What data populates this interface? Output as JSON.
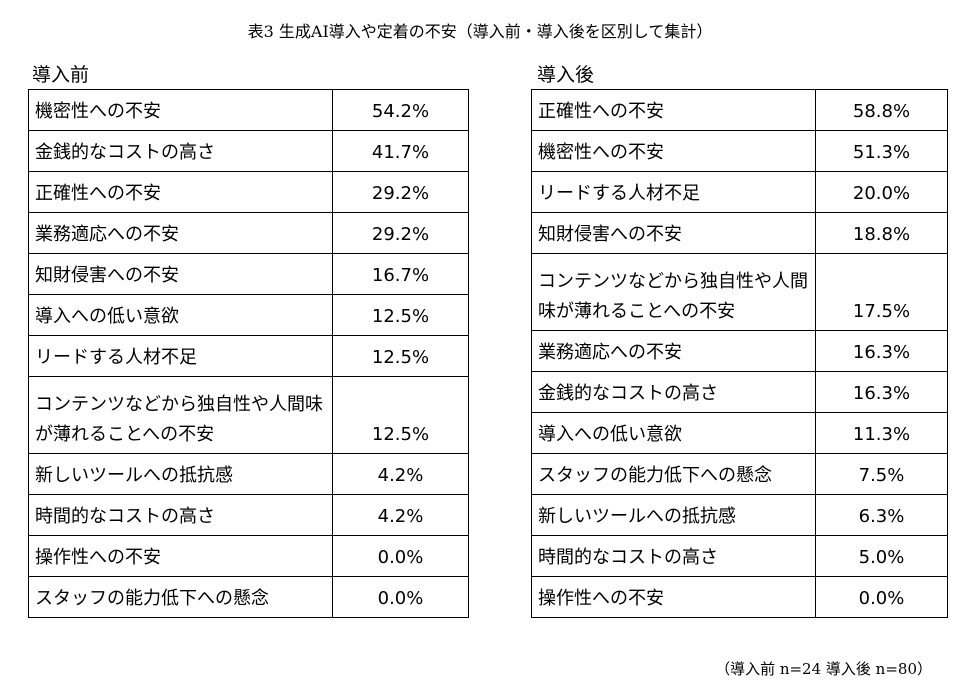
{
  "title": "表3 生成AI導入や定着の不安（導入前・導入後を区別して集計）",
  "before": {
    "label": "導入前",
    "rows": [
      {
        "item": "機密性への不安",
        "pct": "54.2%"
      },
      {
        "item": "金銭的なコストの高さ",
        "pct": "41.7%"
      },
      {
        "item": "正確性への不安",
        "pct": "29.2%"
      },
      {
        "item": "業務適応への不安",
        "pct": "29.2%"
      },
      {
        "item": "知財侵害への不安",
        "pct": "16.7%"
      },
      {
        "item": "導入への低い意欲",
        "pct": "12.5%"
      },
      {
        "item": "リードする人材不足",
        "pct": "12.5%"
      },
      {
        "item": "コンテンツなどから独自性や人間味が薄れることへの不安",
        "pct": "12.5%"
      },
      {
        "item": "新しいツールへの抵抗感",
        "pct": "4.2%"
      },
      {
        "item": "時間的なコストの高さ",
        "pct": "4.2%"
      },
      {
        "item": "操作性への不安",
        "pct": "0.0%"
      },
      {
        "item": "スタッフの能力低下への懸念",
        "pct": "0.0%"
      }
    ]
  },
  "after": {
    "label": "導入後",
    "rows": [
      {
        "item": "正確性への不安",
        "pct": "58.8%"
      },
      {
        "item": "機密性への不安",
        "pct": "51.3%"
      },
      {
        "item": "リードする人材不足",
        "pct": "20.0%"
      },
      {
        "item": "知財侵害への不安",
        "pct": "18.8%"
      },
      {
        "item": "コンテンツなどから独自性や人間味が薄れることへの不安",
        "pct": "17.5%"
      },
      {
        "item": "業務適応への不安",
        "pct": "16.3%"
      },
      {
        "item": "金銭的なコストの高さ",
        "pct": "16.3%"
      },
      {
        "item": "導入への低い意欲",
        "pct": "11.3%"
      },
      {
        "item": "スタッフの能力低下への懸念",
        "pct": "7.5%"
      },
      {
        "item": "新しいツールへの抵抗感",
        "pct": "6.3%"
      },
      {
        "item": "時間的なコストの高さ",
        "pct": "5.0%"
      },
      {
        "item": "操作性への不安",
        "pct": "0.0%"
      }
    ]
  },
  "footnote": "（導入前 n=24 導入後 n=80）"
}
